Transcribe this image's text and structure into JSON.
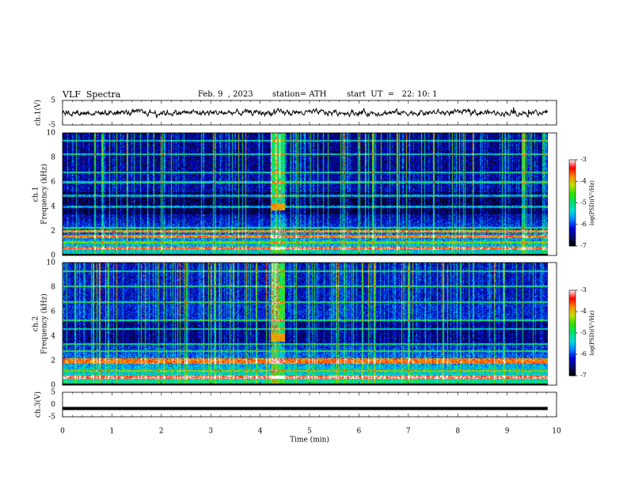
{
  "header": {
    "title": "VLF  Spectra",
    "date": "Feb. 9  , 2023",
    "station": "station= ATH",
    "start": "start  UT  =   22: 10: 1"
  },
  "chart_data": [
    {
      "type": "line",
      "panel": "ch1-waveform",
      "ylabel": "ch.1(V)",
      "ylim": [
        -5,
        5
      ],
      "yticks": [
        "5",
        "-5"
      ],
      "x_range": [
        0,
        10
      ],
      "data_extent_min": [
        0,
        9.82
      ],
      "approx_level": 0,
      "approx_amplitude": 1.5,
      "color": "#000000"
    },
    {
      "type": "heatmap",
      "panel": "ch1-spectrogram",
      "ylabel_lines": [
        "ch.1",
        "Frequency  (kHz)"
      ],
      "ylim_khz": [
        0,
        10
      ],
      "yticks": [
        "0",
        "2",
        "4",
        "6",
        "8",
        "10"
      ],
      "x_range": [
        0,
        10
      ],
      "background_level": -6.4,
      "features": {
        "band_khz": [
          3.7,
          4.3
        ],
        "band_time_min": [
          4.2,
          4.5
        ],
        "persistent_lines_khz": [
          0.6,
          1.1,
          1.6,
          2.0,
          2.3,
          4.0,
          4.9,
          6.0,
          6.8,
          8.3,
          9.4
        ],
        "strong_lines_khz": [
          0.6,
          1.6,
          2.0
        ]
      }
    },
    {
      "type": "heatmap",
      "panel": "ch2-spectrogram",
      "ylabel_lines": [
        "ch.2",
        "Frequency  (kHz)"
      ],
      "ylim_khz": [
        0,
        10
      ],
      "yticks": [
        "0",
        "2",
        "4",
        "6",
        "8",
        "10"
      ],
      "x_range": [
        0,
        10
      ],
      "background_level": -6.2,
      "features": {
        "band_khz": [
          3.6,
          4.3
        ],
        "band_time_min": [
          4.2,
          4.5
        ],
        "persistent_lines_khz": [
          0.7,
          1.2,
          1.9,
          2.1,
          2.8,
          3.4,
          4.6,
          5.3,
          6.8,
          8.1,
          9.3
        ],
        "strong_lines_khz": [
          0.7,
          1.9,
          2.1
        ]
      }
    },
    {
      "type": "line",
      "panel": "ch3-waveform",
      "ylabel": "ch.3(V)",
      "ylim": [
        -5,
        5
      ],
      "yticks": [
        "5",
        "0",
        "-5"
      ],
      "x_range": [
        0,
        10
      ],
      "data_extent_min": [
        0,
        9.82
      ],
      "approx_level": -1.6,
      "color": "#000000"
    }
  ],
  "x_axis": {
    "label": "Time  (min)",
    "ticks": [
      "0",
      "1",
      "2",
      "3",
      "4",
      "5",
      "6",
      "7",
      "8",
      "9",
      "10"
    ],
    "range": [
      0,
      10
    ]
  },
  "colorbars": [
    {
      "for": "ch1-spectrogram",
      "ticks": [
        "-3",
        "-4",
        "-5",
        "-6",
        "-7"
      ],
      "label": "log(PSD)(V²/Hz)",
      "range": [
        -7,
        -3
      ]
    },
    {
      "for": "ch2-spectrogram",
      "ticks": [
        "-3",
        "-4",
        "-5",
        "-6",
        "-7"
      ],
      "label": "log(PSD)(V²/Hz)",
      "range": [
        -7,
        -3
      ]
    }
  ],
  "colormap": [
    "#000000",
    "#0a0a6e",
    "#0000dc",
    "#0080ff",
    "#00dcdc",
    "#00e070",
    "#30e000",
    "#c0e000",
    "#ff8c00",
    "#ff0000",
    "#ffffff"
  ]
}
